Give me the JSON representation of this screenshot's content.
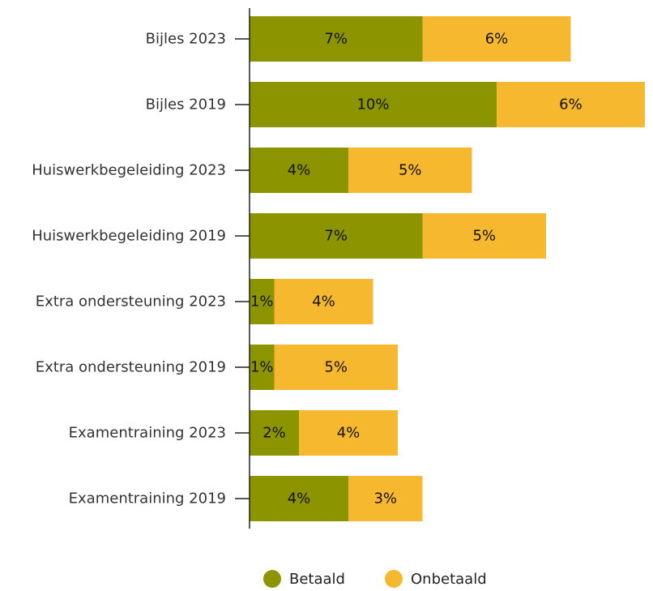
{
  "chart_data": {
    "type": "bar",
    "orientation": "horizontal",
    "stacked": true,
    "categories": [
      "Bijles 2023",
      "Bijles 2019",
      "Huiswerkbegeleiding 2023",
      "Huiswerkbegeleiding 2019",
      "Extra ondersteuning 2023",
      "Extra ondersteuning 2019",
      "Examentraining 2023",
      "Examentraining 2019"
    ],
    "series": [
      {
        "name": "Betaald",
        "color": "#8c9400",
        "values": [
          7,
          10,
          4,
          7,
          1,
          1,
          2,
          4
        ]
      },
      {
        "name": "Onbetaald",
        "color": "#f5b82e",
        "values": [
          6,
          6,
          5,
          5,
          4,
          5,
          4,
          3
        ]
      }
    ],
    "value_suffix": "%",
    "xlim": [
      0,
      16.1
    ],
    "grid": false,
    "legend_position": "bottom-center"
  }
}
